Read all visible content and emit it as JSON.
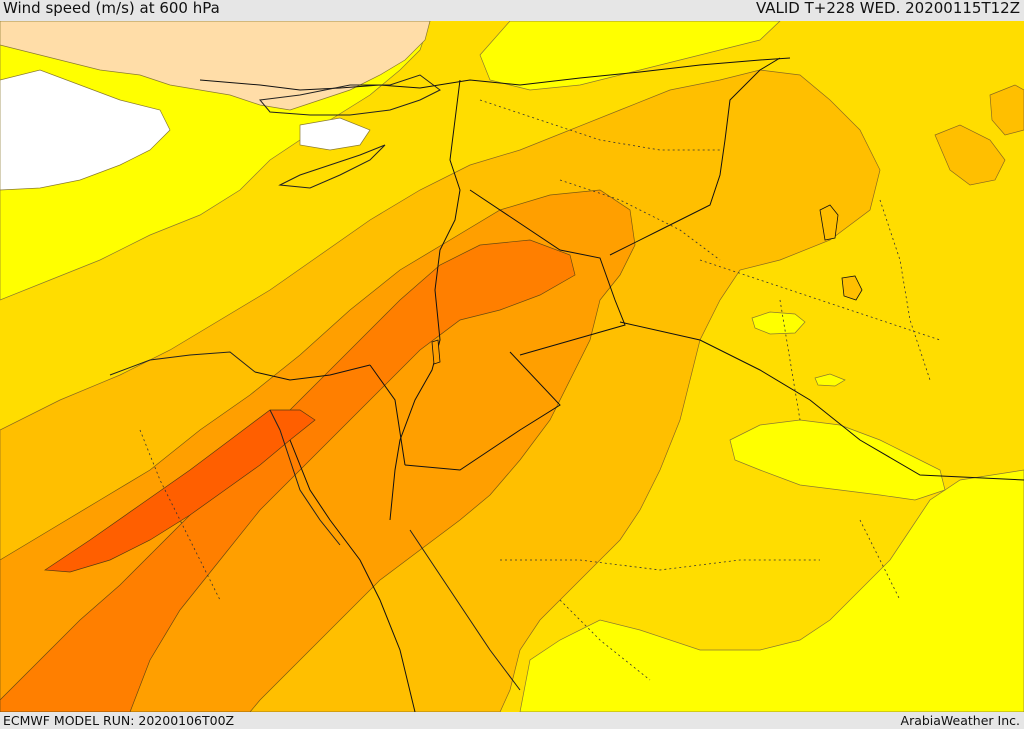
{
  "header": {
    "title": "Wind speed (m/s) at 600 hPa",
    "valid": "VALID T+228 WED. 20200115T12Z"
  },
  "footer": {
    "run": "ECMWF MODEL RUN: 20200106T00Z",
    "credit": "ArabiaWeather Inc."
  },
  "colors": {
    "band_lt5": "#ffffff",
    "band_5_10": "#ffdda8",
    "band_10_15": "#ffff00",
    "band_15_20": "#ffdd00",
    "band_20_25": "#ffbf00",
    "band_25_30": "#ff9f00",
    "band_30_35": "#ff7f00",
    "band_35_40": "#ff5f00",
    "border": "#000000",
    "coast": "#222222"
  }
}
